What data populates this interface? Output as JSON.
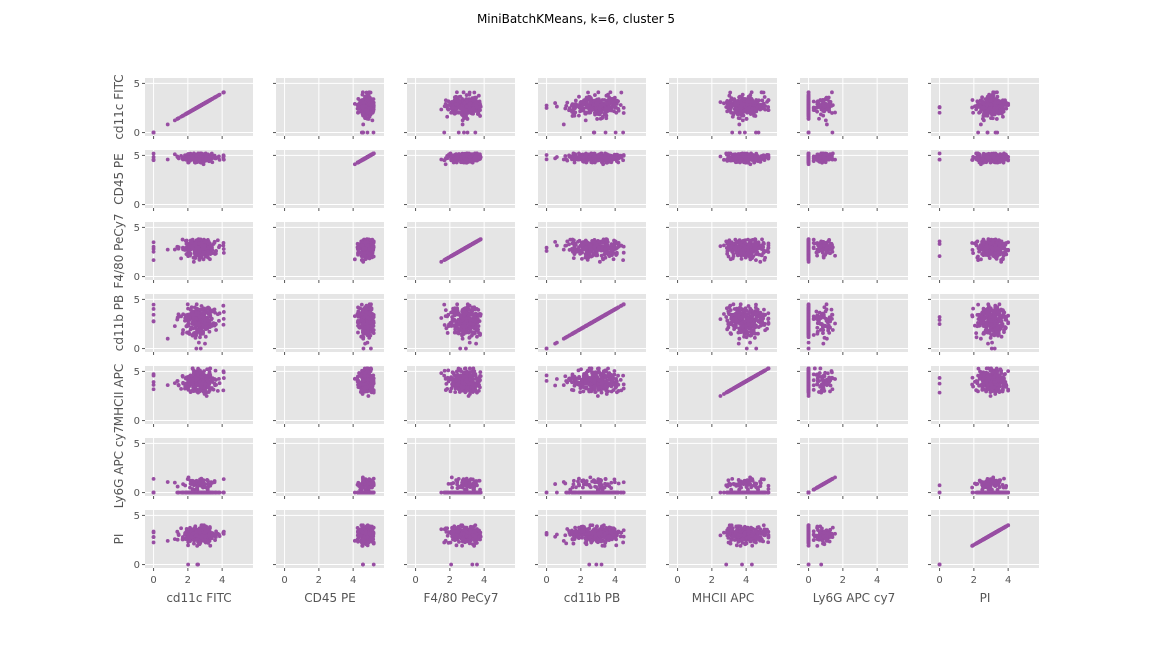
{
  "title": "MiniBatchKMeans, k=6, cluster 5",
  "chart_data": {
    "type": "scatter",
    "layout": "pairplot",
    "title": "MiniBatchKMeans, k=6, cluster 5",
    "variables": [
      "cd11c FITC",
      "CD45 PE",
      "F4/80 PeCy7",
      "cd11b PB",
      "MHCII APC",
      "Ly6G APC cy7",
      "PI"
    ],
    "xlim": [
      -0.5,
      5.8
    ],
    "ylim": [
      -0.35,
      5.55
    ],
    "xticks": [
      0,
      2,
      4
    ],
    "yticks": [
      0,
      5
    ],
    "grid": true,
    "marker_color": "#984ea3",
    "background_color": "#e5e5e5",
    "variable_stats": [
      {
        "name": "cd11c FITC",
        "mean": 2.6,
        "sd": 0.55,
        "min": 0.8,
        "max": 4.1,
        "zero_frac": 0.01
      },
      {
        "name": "CD45 PE",
        "mean": 4.75,
        "sd": 0.22,
        "min": 4.1,
        "max": 5.2,
        "zero_frac": 0.0
      },
      {
        "name": "F4/80 PeCy7",
        "mean": 2.85,
        "sd": 0.45,
        "min": 1.5,
        "max": 3.8,
        "zero_frac": 0.0
      },
      {
        "name": "cd11b PB",
        "mean": 2.8,
        "sd": 0.8,
        "min": 0.5,
        "max": 4.5,
        "zero_frac": 0.01
      },
      {
        "name": "MHCII APC",
        "mean": 4.0,
        "sd": 0.55,
        "min": 2.5,
        "max": 5.3,
        "zero_frac": 0.0
      },
      {
        "name": "Ly6G APC cy7",
        "mean": 0.9,
        "sd": 0.35,
        "min": 0.3,
        "max": 1.6,
        "zero_frac": 0.75
      },
      {
        "name": "PI",
        "mean": 3.1,
        "sd": 0.45,
        "min": 1.9,
        "max": 4.0,
        "zero_frac": 0.02
      }
    ]
  }
}
